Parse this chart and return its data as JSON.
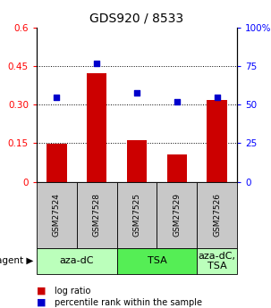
{
  "title": "GDS920 / 8533",
  "samples": [
    "GSM27524",
    "GSM27528",
    "GSM27525",
    "GSM27529",
    "GSM27526"
  ],
  "log_ratio": [
    0.148,
    0.422,
    0.162,
    0.108,
    0.318
  ],
  "percentile_rank": [
    55,
    77,
    58,
    52,
    55
  ],
  "ylim_left": [
    0,
    0.6
  ],
  "ylim_right": [
    0,
    100
  ],
  "yticks_left": [
    0,
    0.15,
    0.3,
    0.45,
    0.6
  ],
  "ytick_labels_left": [
    "0",
    "0.15",
    "0.30",
    "0.45",
    "0.6"
  ],
  "yticks_right": [
    0,
    25,
    50,
    75,
    100
  ],
  "ytick_labels_right": [
    "0",
    "25",
    "50",
    "75",
    "100%"
  ],
  "bar_color": "#CC0000",
  "point_color": "#0000CC",
  "agent_groups": [
    {
      "label": "aza-dC",
      "indices": [
        0,
        1
      ],
      "color": "#BBFFBB"
    },
    {
      "label": "TSA",
      "indices": [
        2,
        3
      ],
      "color": "#55EE55"
    },
    {
      "label": "aza-dC,\nTSA",
      "indices": [
        4
      ],
      "color": "#BBFFBB"
    }
  ],
  "legend_items": [
    {
      "label": "log ratio",
      "color": "#CC0000"
    },
    {
      "label": "percentile rank within the sample",
      "color": "#0000CC"
    }
  ],
  "gray_color": "#C8C8C8",
  "background_color": "#FFFFFF",
  "bar_width": 0.5,
  "title_fontsize": 10,
  "tick_fontsize": 7.5,
  "sample_fontsize": 6.5,
  "agent_fontsize": 8,
  "legend_fontsize": 7
}
